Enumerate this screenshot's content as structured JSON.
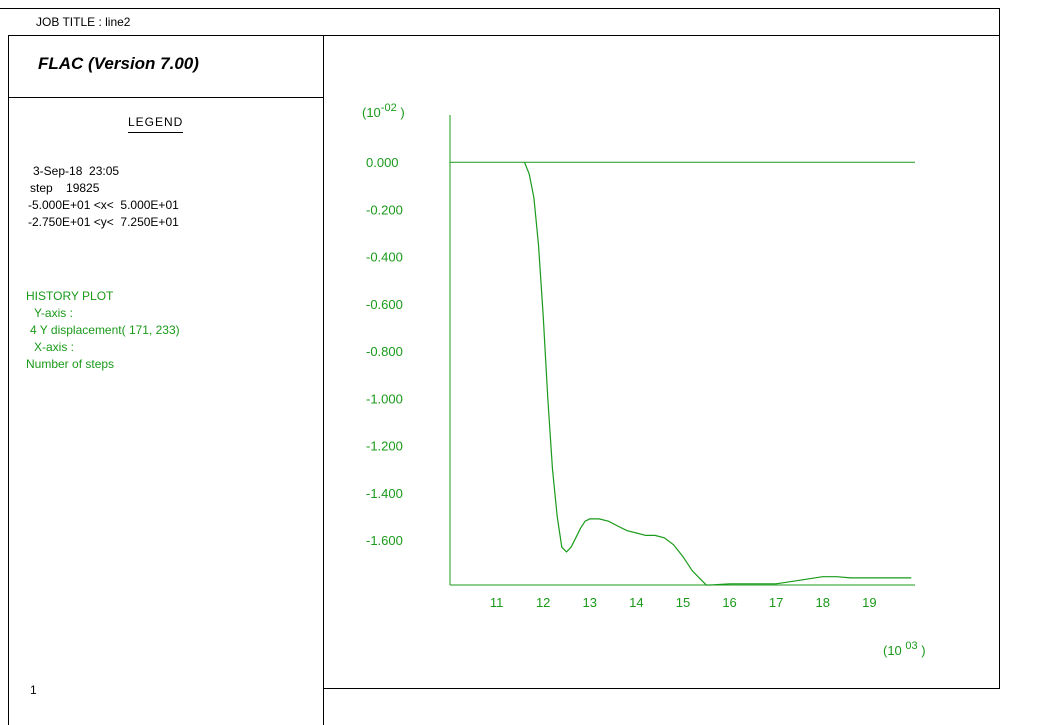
{
  "header": {
    "job_title": "JOB TITLE : line2",
    "program": "FLAC (Version 7.00)"
  },
  "legend": {
    "title": "LEGEND",
    "date": "3-Sep-18  23:05",
    "step": "step    19825",
    "x_range": "-5.000E+01 <x<  5.000E+01",
    "y_range": "-2.750E+01 <y<  7.250E+01",
    "history_plot": "HISTORY PLOT",
    "y_axis_label": "Y-axis :",
    "y_axis_item": "4 Y displacement( 171, 233)",
    "x_axis_label": "X-axis :",
    "x_axis_item": "Number of steps",
    "page_number": "1"
  },
  "colors": {
    "plot": "#1a9a1a",
    "frame": "#000000"
  },
  "chart_data": {
    "type": "line",
    "y_multiplier": {
      "base": "(10",
      "exp": "-02",
      "close": " )"
    },
    "x_multiplier": {
      "base": "(10 ",
      "exp": "03",
      "close": " )"
    },
    "yticks": [
      "0.000",
      "-0.200",
      "-0.400",
      "-0.600",
      "-0.800",
      "-1.000",
      "-1.200",
      "-1.400",
      "-1.600"
    ],
    "xticks": [
      "11",
      "12",
      "13",
      "14",
      "15",
      "16",
      "17",
      "18",
      "19"
    ],
    "xlim": [
      10,
      19.98
    ],
    "ylim": [
      -1.79,
      0.2
    ],
    "zero_line": 0,
    "series": [
      {
        "x": [
          11.6,
          11.7,
          11.8,
          11.9,
          12.0,
          12.1,
          12.2,
          12.3,
          12.4,
          12.5,
          12.6,
          12.7,
          12.8,
          12.9,
          13.0,
          13.2,
          13.4,
          13.6,
          13.8,
          14.0,
          14.2,
          14.4,
          14.6,
          14.8,
          15.0,
          15.2,
          15.4,
          15.5,
          15.6,
          16.0,
          16.5,
          17.0,
          17.5,
          18.0,
          18.3,
          18.6,
          19.0,
          19.5,
          19.9
        ],
        "y": [
          0.0,
          -0.05,
          -0.15,
          -0.35,
          -0.65,
          -1.0,
          -1.3,
          -1.5,
          -1.63,
          -1.65,
          -1.63,
          -1.59,
          -1.55,
          -1.52,
          -1.51,
          -1.51,
          -1.52,
          -1.54,
          -1.56,
          -1.57,
          -1.58,
          -1.58,
          -1.59,
          -1.62,
          -1.67,
          -1.73,
          -1.77,
          -1.79,
          -1.79,
          -1.785,
          -1.785,
          -1.785,
          -1.77,
          -1.755,
          -1.755,
          -1.76,
          -1.76,
          -1.76,
          -1.76
        ]
      }
    ]
  }
}
